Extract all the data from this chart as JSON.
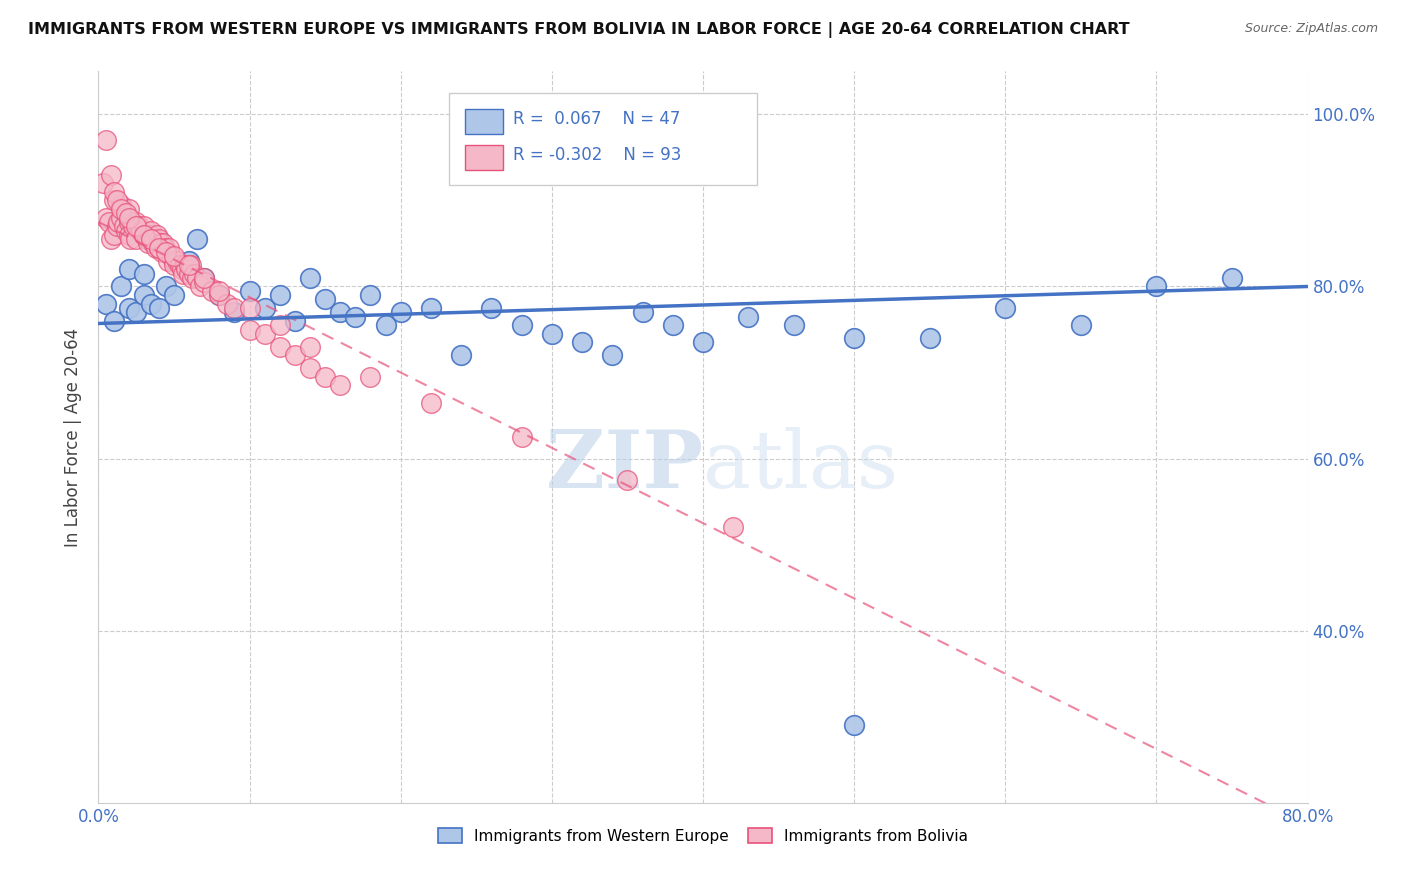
{
  "title": "IMMIGRANTS FROM WESTERN EUROPE VS IMMIGRANTS FROM BOLIVIA IN LABOR FORCE | AGE 20-64 CORRELATION CHART",
  "source": "Source: ZipAtlas.com",
  "ylabel": "In Labor Force | Age 20-64",
  "xlim": [
    0.0,
    0.8
  ],
  "ylim": [
    0.2,
    1.05
  ],
  "x_tick_positions": [
    0.0,
    0.1,
    0.2,
    0.3,
    0.4,
    0.5,
    0.6,
    0.7,
    0.8
  ],
  "x_tick_labels": [
    "0.0%",
    "",
    "",
    "",
    "",
    "",
    "",
    "",
    "80.0%"
  ],
  "y_tick_positions": [
    0.4,
    0.6,
    0.8,
    1.0
  ],
  "y_tick_labels": [
    "40.0%",
    "60.0%",
    "80.0%",
    "100.0%"
  ],
  "R_blue": 0.067,
  "N_blue": 47,
  "R_pink": -0.302,
  "N_pink": 93,
  "blue_color": "#aec6e8",
  "blue_edge_color": "#4472c4",
  "blue_line_color": "#4472c4",
  "pink_color": "#f4b8c8",
  "pink_edge_color": "#e8527a",
  "pink_line_color": "#e8527a",
  "legend_blue_label": "Immigrants from Western Europe",
  "legend_pink_label": "Immigrants from Bolivia",
  "watermark_zip": "ZIP",
  "watermark_atlas": "atlas",
  "blue_scatter_x": [
    0.005,
    0.01,
    0.015,
    0.02,
    0.02,
    0.025,
    0.03,
    0.03,
    0.035,
    0.04,
    0.045,
    0.05,
    0.06,
    0.065,
    0.07,
    0.08,
    0.09,
    0.1,
    0.11,
    0.12,
    0.13,
    0.14,
    0.15,
    0.16,
    0.17,
    0.18,
    0.19,
    0.2,
    0.22,
    0.24,
    0.26,
    0.28,
    0.3,
    0.32,
    0.34,
    0.36,
    0.38,
    0.4,
    0.43,
    0.46,
    0.5,
    0.55,
    0.6,
    0.65,
    0.7,
    0.75,
    0.5
  ],
  "blue_scatter_y": [
    0.78,
    0.76,
    0.8,
    0.775,
    0.82,
    0.77,
    0.79,
    0.815,
    0.78,
    0.775,
    0.8,
    0.79,
    0.83,
    0.855,
    0.81,
    0.79,
    0.77,
    0.795,
    0.775,
    0.79,
    0.76,
    0.81,
    0.785,
    0.77,
    0.765,
    0.79,
    0.755,
    0.77,
    0.775,
    0.72,
    0.775,
    0.755,
    0.745,
    0.735,
    0.72,
    0.77,
    0.755,
    0.735,
    0.765,
    0.755,
    0.74,
    0.74,
    0.775,
    0.755,
    0.8,
    0.81,
    0.29
  ],
  "pink_scatter_x": [
    0.003,
    0.005,
    0.007,
    0.008,
    0.01,
    0.01,
    0.012,
    0.013,
    0.015,
    0.015,
    0.017,
    0.018,
    0.02,
    0.02,
    0.02,
    0.021,
    0.022,
    0.023,
    0.025,
    0.025,
    0.027,
    0.028,
    0.03,
    0.03,
    0.031,
    0.032,
    0.033,
    0.034,
    0.035,
    0.036,
    0.037,
    0.038,
    0.039,
    0.04,
    0.04,
    0.041,
    0.042,
    0.043,
    0.044,
    0.045,
    0.046,
    0.047,
    0.048,
    0.05,
    0.05,
    0.052,
    0.054,
    0.055,
    0.056,
    0.057,
    0.058,
    0.06,
    0.061,
    0.062,
    0.063,
    0.065,
    0.067,
    0.07,
    0.075,
    0.08,
    0.085,
    0.09,
    0.1,
    0.11,
    0.12,
    0.13,
    0.14,
    0.15,
    0.16,
    0.005,
    0.008,
    0.01,
    0.012,
    0.015,
    0.018,
    0.02,
    0.025,
    0.03,
    0.035,
    0.04,
    0.045,
    0.05,
    0.06,
    0.07,
    0.08,
    0.1,
    0.12,
    0.14,
    0.18,
    0.22,
    0.28,
    0.35,
    0.42
  ],
  "pink_scatter_y": [
    0.92,
    0.88,
    0.875,
    0.855,
    0.9,
    0.86,
    0.87,
    0.875,
    0.88,
    0.895,
    0.87,
    0.865,
    0.875,
    0.86,
    0.89,
    0.855,
    0.875,
    0.87,
    0.875,
    0.855,
    0.87,
    0.865,
    0.87,
    0.86,
    0.86,
    0.855,
    0.85,
    0.86,
    0.865,
    0.85,
    0.855,
    0.845,
    0.86,
    0.855,
    0.845,
    0.85,
    0.84,
    0.85,
    0.845,
    0.84,
    0.83,
    0.845,
    0.835,
    0.83,
    0.825,
    0.83,
    0.825,
    0.82,
    0.815,
    0.825,
    0.82,
    0.815,
    0.825,
    0.81,
    0.815,
    0.81,
    0.8,
    0.805,
    0.795,
    0.79,
    0.78,
    0.775,
    0.75,
    0.745,
    0.73,
    0.72,
    0.705,
    0.695,
    0.685,
    0.97,
    0.93,
    0.91,
    0.9,
    0.89,
    0.885,
    0.88,
    0.87,
    0.86,
    0.855,
    0.845,
    0.84,
    0.835,
    0.825,
    0.81,
    0.795,
    0.775,
    0.755,
    0.73,
    0.695,
    0.665,
    0.625,
    0.575,
    0.52
  ]
}
